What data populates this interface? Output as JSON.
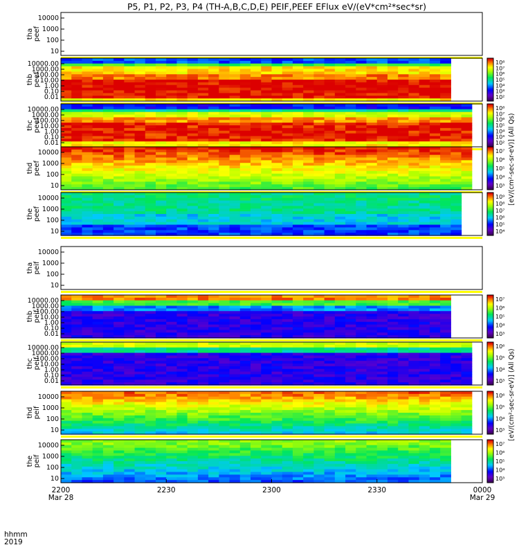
{
  "chart_data": {
    "type": "heatmap",
    "title": "P5, P1, P2, P3, P4 (TH-A,B,C,D,E) PEIF,PEEF EFlux eV/(eV*cm²*sec*sr)",
    "colorbar_label_electrons": "[eV/(cm²-sec-sr-eV)] (All Qs)",
    "colorbar_label_ions": "[eV/(cm²-sec-sr-eV)] (All Qs)",
    "xaxis": {
      "label_rows": [
        "hhmm",
        "2019"
      ],
      "ticks": [
        "2200",
        "2230",
        "2300",
        "2330",
        "0000"
      ],
      "dates": [
        "Mar 28",
        "",
        "",
        "",
        "Mar 29"
      ]
    },
    "panels": [
      {
        "probe": "tha",
        "quantity": "peef",
        "ylabel": [
          "tha",
          "peef"
        ],
        "yticks": [
          "10000",
          "1000",
          "100",
          "10"
        ],
        "has_data": false
      },
      {
        "probe": "thb",
        "quantity": "peef",
        "ylabel": [
          "thb",
          "peef"
        ],
        "yticks": [
          "10000.00",
          "1000.00",
          "100.00",
          "10.00",
          "1.00",
          "0.10",
          "0.01"
        ],
        "has_data": true,
        "colorbar_ticks": [
          "10⁸",
          "10⁷",
          "10⁶",
          "10⁵",
          "10⁴",
          "10³",
          "10²"
        ]
      },
      {
        "probe": "thc",
        "quantity": "peef",
        "ylabel": [
          "thc",
          "peef"
        ],
        "yticks": [
          "10000.00",
          "1000.00",
          "100.00",
          "10.00",
          "1.00",
          "0.10",
          "0.01"
        ],
        "has_data": true,
        "colorbar_ticks": [
          "10⁸",
          "10⁷",
          "10⁶",
          "10⁵",
          "10⁴",
          "10³",
          "10²"
        ]
      },
      {
        "probe": "thd",
        "quantity": "peef",
        "ylabel": [
          "thd",
          "peef"
        ],
        "yticks": [
          "10000",
          "1000",
          "100",
          "10"
        ],
        "has_data": true,
        "colorbar_ticks": [
          "10⁷",
          "10⁶",
          "10⁵",
          "10⁴",
          "10³"
        ]
      },
      {
        "probe": "the",
        "quantity": "peef",
        "ylabel": [
          "the",
          "peef"
        ],
        "yticks": [
          "10000",
          "1000",
          "100",
          "10"
        ],
        "has_data": true,
        "colorbar_ticks": [
          "10⁹",
          "10⁸",
          "10⁷",
          "10⁶",
          "10⁵",
          "10⁴"
        ]
      },
      {
        "probe": "tha",
        "quantity": "peif",
        "ylabel": [
          "tha",
          "peif"
        ],
        "yticks": [
          "10000",
          "1000",
          "100",
          "10"
        ],
        "has_data": false
      },
      {
        "probe": "thb",
        "quantity": "peif",
        "ylabel": [
          "thb",
          "peif"
        ],
        "yticks": [
          "10000.00",
          "1000.00",
          "100.00",
          "10.00",
          "1.00",
          "0.10",
          "0.01"
        ],
        "has_data": true,
        "colorbar_ticks": [
          "10⁷",
          "10⁶",
          "10⁵",
          "10⁴",
          "10³"
        ]
      },
      {
        "probe": "thc",
        "quantity": "peif",
        "ylabel": [
          "thc",
          "peif"
        ],
        "yticks": [
          "10000.00",
          "1000.00",
          "100.00",
          "10.00",
          "1.00",
          "0.10",
          "0.01"
        ],
        "has_data": true,
        "colorbar_ticks": [
          "10⁶",
          "10⁵",
          "10⁴",
          "10³"
        ]
      },
      {
        "probe": "thd",
        "quantity": "peif",
        "ylabel": [
          "thd",
          "peif"
        ],
        "yticks": [
          "10000",
          "1000",
          "100",
          "10"
        ],
        "has_data": true,
        "colorbar_ticks": [
          "10⁶",
          "10⁵",
          "10⁴",
          "10³"
        ]
      },
      {
        "probe": "the",
        "quantity": "peif",
        "ylabel": [
          "the",
          "peif"
        ],
        "yticks": [
          "10000",
          "1000",
          "100",
          "10"
        ],
        "has_data": true,
        "colorbar_ticks": [
          "10⁷",
          "10⁶",
          "10⁵",
          "10⁴",
          "10³"
        ]
      }
    ],
    "energy_range_eV": [
      5,
      30000
    ],
    "color_scale": "rainbow (purple-blue-cyan-green-yellow-red)",
    "grid": false,
    "legend_placement": "colorbars at right of each panel"
  }
}
